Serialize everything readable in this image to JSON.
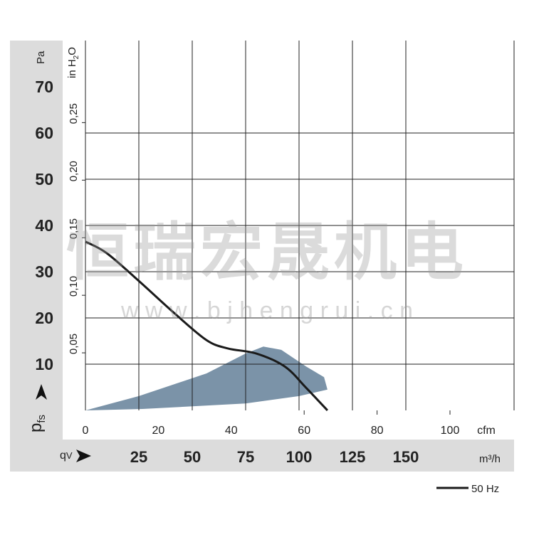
{
  "chart_data": {
    "type": "line",
    "title": "",
    "y_axis_left": {
      "unit": "Pa",
      "ticks": [
        "10",
        "20",
        "30",
        "40",
        "50",
        "60",
        "70"
      ],
      "range": [
        0,
        80
      ]
    },
    "y_axis_secondary": {
      "unit": "in H2O",
      "unit_main": "in H",
      "unit_sub": "2",
      "unit_end": "O",
      "ticks": [
        "0,05",
        "0,10",
        "0,15",
        "0,20",
        "0,25"
      ]
    },
    "y_label": "p",
    "y_label_sub": "fs",
    "x_axis_cfm": {
      "unit": "cfm",
      "ticks": [
        "0",
        "20",
        "40",
        "60",
        "80",
        "100"
      ]
    },
    "x_axis_m3h": {
      "unit": "m³/h",
      "ticks": [
        "25",
        "50",
        "75",
        "100",
        "125",
        "150"
      ],
      "range": [
        0,
        200
      ]
    },
    "x_label": "q",
    "x_label_sub": "V",
    "grid": true,
    "series": [
      {
        "name": "50 Hz",
        "color": "#1a1a1a",
        "x": [
          0,
          10,
          25,
          41.7,
          56.7,
          66.7,
          80,
          93.3,
          103.3,
          113.3
        ],
        "y": [
          36.5,
          34,
          28,
          21,
          15.2,
          13.4,
          12.3,
          9.5,
          4.9,
          0
        ]
      }
    ],
    "operating_range": {
      "color": "#7b93a8",
      "x": [
        0,
        25,
        56.7,
        75,
        83.3,
        91.7,
        103.3,
        111.7,
        113.3,
        100,
        75,
        26.7,
        0
      ],
      "y": [
        0,
        3.1,
        8,
        12.3,
        13.8,
        13.1,
        9.5,
        7.2,
        4.5,
        3.1,
        1.5,
        0.3,
        0
      ]
    },
    "legend": {
      "label": "50 Hz",
      "placement": "bottom-right"
    }
  },
  "watermark": {
    "title": "恒瑞宏晟机电",
    "url": "w w w . b j h e n g r u i . c n"
  }
}
